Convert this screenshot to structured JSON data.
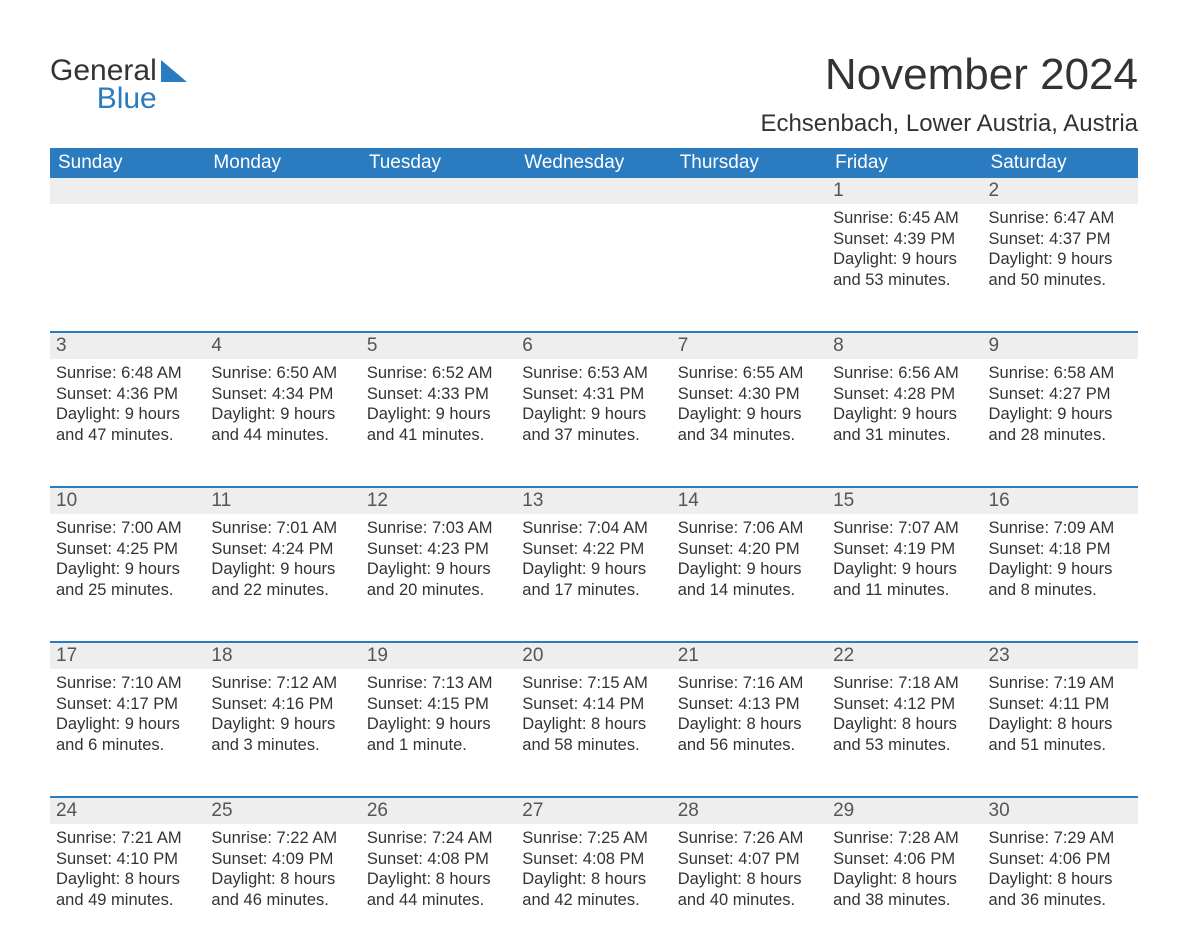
{
  "brand": {
    "general": "General",
    "blue": "Blue"
  },
  "title": "November 2024",
  "location": "Echsenbach, Lower Austria, Austria",
  "colors": {
    "header_bg": "#2a7bbf",
    "header_text": "#ffffff",
    "num_bg": "#eeeeee",
    "border": "#2a7bbf",
    "text": "#333333",
    "brand_blue": "#2a7bbf"
  },
  "typography": {
    "title_fontsize": 44,
    "location_fontsize": 24,
    "header_fontsize": 19,
    "daynum_fontsize": 19,
    "content_fontsize": 16.5
  },
  "weekdays": [
    "Sunday",
    "Monday",
    "Tuesday",
    "Wednesday",
    "Thursday",
    "Friday",
    "Saturday"
  ],
  "weeks": [
    [
      null,
      null,
      null,
      null,
      null,
      {
        "n": "1",
        "sunrise": "6:45 AM",
        "sunset": "4:39 PM",
        "daylight": "9 hours and 53 minutes."
      },
      {
        "n": "2",
        "sunrise": "6:47 AM",
        "sunset": "4:37 PM",
        "daylight": "9 hours and 50 minutes."
      }
    ],
    [
      {
        "n": "3",
        "sunrise": "6:48 AM",
        "sunset": "4:36 PM",
        "daylight": "9 hours and 47 minutes."
      },
      {
        "n": "4",
        "sunrise": "6:50 AM",
        "sunset": "4:34 PM",
        "daylight": "9 hours and 44 minutes."
      },
      {
        "n": "5",
        "sunrise": "6:52 AM",
        "sunset": "4:33 PM",
        "daylight": "9 hours and 41 minutes."
      },
      {
        "n": "6",
        "sunrise": "6:53 AM",
        "sunset": "4:31 PM",
        "daylight": "9 hours and 37 minutes."
      },
      {
        "n": "7",
        "sunrise": "6:55 AM",
        "sunset": "4:30 PM",
        "daylight": "9 hours and 34 minutes."
      },
      {
        "n": "8",
        "sunrise": "6:56 AM",
        "sunset": "4:28 PM",
        "daylight": "9 hours and 31 minutes."
      },
      {
        "n": "9",
        "sunrise": "6:58 AM",
        "sunset": "4:27 PM",
        "daylight": "9 hours and 28 minutes."
      }
    ],
    [
      {
        "n": "10",
        "sunrise": "7:00 AM",
        "sunset": "4:25 PM",
        "daylight": "9 hours and 25 minutes."
      },
      {
        "n": "11",
        "sunrise": "7:01 AM",
        "sunset": "4:24 PM",
        "daylight": "9 hours and 22 minutes."
      },
      {
        "n": "12",
        "sunrise": "7:03 AM",
        "sunset": "4:23 PM",
        "daylight": "9 hours and 20 minutes."
      },
      {
        "n": "13",
        "sunrise": "7:04 AM",
        "sunset": "4:22 PM",
        "daylight": "9 hours and 17 minutes."
      },
      {
        "n": "14",
        "sunrise": "7:06 AM",
        "sunset": "4:20 PM",
        "daylight": "9 hours and 14 minutes."
      },
      {
        "n": "15",
        "sunrise": "7:07 AM",
        "sunset": "4:19 PM",
        "daylight": "9 hours and 11 minutes."
      },
      {
        "n": "16",
        "sunrise": "7:09 AM",
        "sunset": "4:18 PM",
        "daylight": "9 hours and 8 minutes."
      }
    ],
    [
      {
        "n": "17",
        "sunrise": "7:10 AM",
        "sunset": "4:17 PM",
        "daylight": "9 hours and 6 minutes."
      },
      {
        "n": "18",
        "sunrise": "7:12 AM",
        "sunset": "4:16 PM",
        "daylight": "9 hours and 3 minutes."
      },
      {
        "n": "19",
        "sunrise": "7:13 AM",
        "sunset": "4:15 PM",
        "daylight": "9 hours and 1 minute."
      },
      {
        "n": "20",
        "sunrise": "7:15 AM",
        "sunset": "4:14 PM",
        "daylight": "8 hours and 58 minutes."
      },
      {
        "n": "21",
        "sunrise": "7:16 AM",
        "sunset": "4:13 PM",
        "daylight": "8 hours and 56 minutes."
      },
      {
        "n": "22",
        "sunrise": "7:18 AM",
        "sunset": "4:12 PM",
        "daylight": "8 hours and 53 minutes."
      },
      {
        "n": "23",
        "sunrise": "7:19 AM",
        "sunset": "4:11 PM",
        "daylight": "8 hours and 51 minutes."
      }
    ],
    [
      {
        "n": "24",
        "sunrise": "7:21 AM",
        "sunset": "4:10 PM",
        "daylight": "8 hours and 49 minutes."
      },
      {
        "n": "25",
        "sunrise": "7:22 AM",
        "sunset": "4:09 PM",
        "daylight": "8 hours and 46 minutes."
      },
      {
        "n": "26",
        "sunrise": "7:24 AM",
        "sunset": "4:08 PM",
        "daylight": "8 hours and 44 minutes."
      },
      {
        "n": "27",
        "sunrise": "7:25 AM",
        "sunset": "4:08 PM",
        "daylight": "8 hours and 42 minutes."
      },
      {
        "n": "28",
        "sunrise": "7:26 AM",
        "sunset": "4:07 PM",
        "daylight": "8 hours and 40 minutes."
      },
      {
        "n": "29",
        "sunrise": "7:28 AM",
        "sunset": "4:06 PM",
        "daylight": "8 hours and 38 minutes."
      },
      {
        "n": "30",
        "sunrise": "7:29 AM",
        "sunset": "4:06 PM",
        "daylight": "8 hours and 36 minutes."
      }
    ]
  ],
  "labels": {
    "sunrise": "Sunrise:",
    "sunset": "Sunset:",
    "daylight": "Daylight:"
  }
}
